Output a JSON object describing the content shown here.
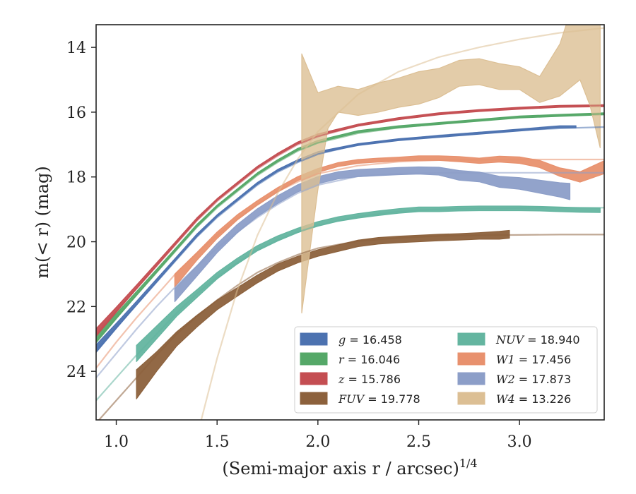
{
  "chart_data": {
    "type": "line",
    "xlabel": "(Semi-major axis r / arcsec)",
    "xlabel_sup": "1/4",
    "ylabel": "m(< r) (mag)",
    "xlim": [
      0.9,
      3.42
    ],
    "ylim": [
      25.5,
      13.3
    ],
    "y_inverted": true,
    "xticks": [
      1.0,
      1.5,
      2.0,
      2.5,
      3.0
    ],
    "xtick_labels": [
      "1.0",
      "1.5",
      "2.0",
      "2.5",
      "3.0"
    ],
    "yticks": [
      14,
      16,
      18,
      20,
      22,
      24
    ],
    "ytick_labels": [
      "14",
      "16",
      "18",
      "20",
      "22",
      "24"
    ],
    "legend_position": "lower right",
    "series": [
      {
        "name": "g",
        "value_text": "16.458",
        "color": "#4c72b0",
        "band_x": [
          0.9,
          1.0,
          1.1,
          1.2,
          1.3,
          1.4,
          1.5,
          1.6,
          1.7,
          1.8,
          1.9,
          2.0,
          2.2,
          2.4,
          2.6,
          2.8,
          3.0,
          3.2,
          3.28
        ],
        "band_y": [
          23.3,
          22.6,
          21.9,
          21.2,
          20.5,
          19.8,
          19.2,
          18.7,
          18.2,
          17.8,
          17.5,
          17.25,
          17.0,
          16.85,
          16.75,
          16.65,
          16.55,
          16.45,
          16.45
        ],
        "band_halfwidth": [
          0.12,
          0.08,
          0.06,
          0.05,
          0.04,
          0.04,
          0.03,
          0.03,
          0.03,
          0.03,
          0.03,
          0.03,
          0.03,
          0.03,
          0.03,
          0.03,
          0.03,
          0.03,
          0.03
        ],
        "model_x": [
          0.9,
          1.0,
          1.1,
          1.2,
          1.3,
          1.4,
          1.5,
          1.6,
          1.7,
          1.8,
          1.9,
          2.0,
          2.2,
          2.4,
          2.6,
          2.8,
          3.0,
          3.2,
          3.42
        ],
        "model_y": [
          23.35,
          22.65,
          21.95,
          21.25,
          20.55,
          19.85,
          19.25,
          18.75,
          18.25,
          17.85,
          17.55,
          17.3,
          17.0,
          16.85,
          16.72,
          16.63,
          16.56,
          16.5,
          16.46
        ]
      },
      {
        "name": "r",
        "value_text": "16.046",
        "color": "#55a868",
        "band_x": [
          0.9,
          1.0,
          1.1,
          1.2,
          1.3,
          1.4,
          1.5,
          1.6,
          1.7,
          1.8,
          1.9,
          2.0,
          2.2,
          2.4,
          2.6,
          2.8,
          3.0,
          3.2,
          3.42
        ],
        "band_y": [
          23.0,
          22.3,
          21.6,
          20.9,
          20.2,
          19.5,
          18.9,
          18.4,
          17.9,
          17.5,
          17.15,
          16.9,
          16.6,
          16.45,
          16.35,
          16.25,
          16.15,
          16.1,
          16.05
        ],
        "band_halfwidth": [
          0.12,
          0.08,
          0.06,
          0.05,
          0.04,
          0.04,
          0.03,
          0.03,
          0.03,
          0.03,
          0.03,
          0.03,
          0.03,
          0.03,
          0.03,
          0.03,
          0.03,
          0.03,
          0.03
        ],
        "model_x": [
          0.9,
          1.0,
          1.1,
          1.2,
          1.3,
          1.4,
          1.5,
          1.6,
          1.7,
          1.8,
          1.9,
          2.0,
          2.2,
          2.4,
          2.6,
          2.8,
          3.0,
          3.2,
          3.42
        ],
        "model_y": [
          23.05,
          22.35,
          21.65,
          20.95,
          20.25,
          19.55,
          18.95,
          18.45,
          17.95,
          17.55,
          17.2,
          16.95,
          16.65,
          16.48,
          16.36,
          16.25,
          16.16,
          16.1,
          16.05
        ]
      },
      {
        "name": "z",
        "value_text": "15.786",
        "color": "#c44e52",
        "band_x": [
          0.9,
          1.0,
          1.1,
          1.2,
          1.3,
          1.4,
          1.5,
          1.6,
          1.7,
          1.8,
          1.9,
          2.0,
          2.2,
          2.4,
          2.6,
          2.8,
          3.0,
          3.2,
          3.42
        ],
        "band_y": [
          22.8,
          22.1,
          21.4,
          20.7,
          20.0,
          19.3,
          18.7,
          18.2,
          17.7,
          17.3,
          16.95,
          16.7,
          16.4,
          16.2,
          16.05,
          15.95,
          15.88,
          15.82,
          15.8
        ],
        "band_halfwidth": [
          0.12,
          0.08,
          0.06,
          0.05,
          0.04,
          0.04,
          0.03,
          0.03,
          0.03,
          0.03,
          0.03,
          0.03,
          0.03,
          0.03,
          0.03,
          0.03,
          0.03,
          0.03,
          0.03
        ],
        "model_x": [
          0.9,
          1.0,
          1.1,
          1.2,
          1.3,
          1.4,
          1.5,
          1.6,
          1.7,
          1.8,
          1.9,
          2.0,
          2.2,
          2.4,
          2.6,
          2.8,
          3.0,
          3.2,
          3.42
        ],
        "model_y": [
          22.85,
          22.15,
          21.45,
          20.75,
          20.05,
          19.35,
          18.75,
          18.25,
          17.75,
          17.35,
          17.0,
          16.75,
          16.42,
          16.22,
          16.06,
          15.96,
          15.88,
          15.82,
          15.79
        ]
      },
      {
        "name": "FUV",
        "value_text": "19.778",
        "color": "#8c613c",
        "band_x": [
          1.1,
          1.2,
          1.3,
          1.4,
          1.5,
          1.6,
          1.7,
          1.8,
          1.9,
          2.0,
          2.1,
          2.2,
          2.3,
          2.4,
          2.5,
          2.6,
          2.7,
          2.8,
          2.9,
          2.95
        ],
        "band_y": [
          24.4,
          23.7,
          23.0,
          22.45,
          21.95,
          21.55,
          21.15,
          20.8,
          20.55,
          20.35,
          20.2,
          20.05,
          19.97,
          19.93,
          19.9,
          19.87,
          19.85,
          19.82,
          19.8,
          19.77
        ],
        "band_halfwidth": [
          0.45,
          0.3,
          0.22,
          0.18,
          0.15,
          0.13,
          0.12,
          0.11,
          0.1,
          0.1,
          0.1,
          0.1,
          0.1,
          0.1,
          0.1,
          0.1,
          0.1,
          0.1,
          0.12,
          0.12
        ],
        "model_x": [
          0.9,
          1.0,
          1.1,
          1.2,
          1.3,
          1.4,
          1.5,
          1.6,
          1.7,
          1.8,
          1.9,
          2.0,
          2.2,
          2.4,
          2.6,
          2.8,
          3.0,
          3.2,
          3.42
        ],
        "model_y": [
          25.6,
          24.9,
          24.2,
          23.5,
          22.85,
          22.3,
          21.8,
          21.35,
          20.95,
          20.65,
          20.4,
          20.2,
          19.98,
          19.88,
          19.82,
          19.8,
          19.79,
          19.78,
          19.78
        ]
      },
      {
        "name": "NUV",
        "value_text": "18.940",
        "color": "#64b5a0",
        "band_x": [
          1.1,
          1.2,
          1.3,
          1.4,
          1.5,
          1.6,
          1.7,
          1.8,
          1.9,
          2.0,
          2.1,
          2.2,
          2.3,
          2.4,
          2.5,
          2.6,
          2.7,
          2.8,
          2.9,
          3.0,
          3.1,
          3.2,
          3.3,
          3.4
        ],
        "band_y": [
          23.45,
          22.8,
          22.15,
          21.6,
          21.05,
          20.6,
          20.2,
          19.9,
          19.65,
          19.45,
          19.3,
          19.2,
          19.12,
          19.05,
          19.0,
          19.0,
          18.98,
          18.97,
          18.97,
          18.97,
          18.98,
          19.0,
          19.02,
          19.03
        ],
        "band_halfwidth": [
          0.25,
          0.2,
          0.15,
          0.12,
          0.1,
          0.09,
          0.08,
          0.08,
          0.07,
          0.07,
          0.07,
          0.07,
          0.07,
          0.07,
          0.07,
          0.07,
          0.07,
          0.07,
          0.07,
          0.07,
          0.07,
          0.07,
          0.07,
          0.07
        ],
        "model_x": [
          0.9,
          1.0,
          1.1,
          1.2,
          1.3,
          1.4,
          1.5,
          1.6,
          1.7,
          1.8,
          1.9,
          2.0,
          2.2,
          2.4,
          2.6,
          2.8,
          3.0,
          3.2,
          3.42
        ],
        "model_y": [
          24.9,
          24.2,
          23.5,
          22.85,
          22.2,
          21.6,
          21.1,
          20.65,
          20.25,
          19.95,
          19.7,
          19.5,
          19.22,
          19.07,
          19.0,
          18.97,
          18.96,
          18.95,
          18.95
        ]
      },
      {
        "name": "W1",
        "value_text": "17.456",
        "color": "#e8916e",
        "band_x": [
          1.29,
          1.4,
          1.5,
          1.6,
          1.7,
          1.8,
          1.9,
          2.0,
          2.1,
          2.2,
          2.3,
          2.4,
          2.5,
          2.6,
          2.7,
          2.8,
          2.9,
          3.0,
          3.1,
          3.2,
          3.3,
          3.42
        ],
        "band_y": [
          21.2,
          20.45,
          19.8,
          19.25,
          18.8,
          18.4,
          18.05,
          17.8,
          17.62,
          17.52,
          17.48,
          17.45,
          17.42,
          17.42,
          17.45,
          17.5,
          17.45,
          17.48,
          17.6,
          17.85,
          18.0,
          17.7
        ],
        "band_halfwidth": [
          0.2,
          0.12,
          0.1,
          0.08,
          0.07,
          0.07,
          0.06,
          0.06,
          0.06,
          0.06,
          0.06,
          0.06,
          0.07,
          0.07,
          0.08,
          0.08,
          0.09,
          0.1,
          0.11,
          0.13,
          0.16,
          0.2
        ],
        "model_x": [
          0.9,
          1.0,
          1.1,
          1.2,
          1.3,
          1.4,
          1.5,
          1.6,
          1.7,
          1.8,
          1.9,
          2.0,
          2.2,
          2.4,
          2.6,
          2.8,
          3.0,
          3.2,
          3.42
        ],
        "model_y": [
          23.9,
          23.1,
          22.35,
          21.65,
          20.95,
          20.35,
          19.8,
          19.3,
          18.85,
          18.45,
          18.15,
          17.9,
          17.65,
          17.53,
          17.48,
          17.47,
          17.46,
          17.46,
          17.46
        ]
      },
      {
        "name": "W2",
        "value_text": "17.873",
        "color": "#8c9ec8",
        "band_x": [
          1.29,
          1.4,
          1.5,
          1.6,
          1.7,
          1.8,
          1.9,
          2.0,
          2.1,
          2.2,
          2.3,
          2.4,
          2.5,
          2.6,
          2.7,
          2.8,
          2.9,
          3.0,
          3.1,
          3.2,
          3.25
        ],
        "band_y": [
          21.65,
          20.9,
          20.2,
          19.6,
          19.1,
          18.7,
          18.35,
          18.1,
          17.95,
          17.88,
          17.85,
          17.82,
          17.8,
          17.82,
          17.95,
          18.0,
          18.15,
          18.2,
          18.3,
          18.4,
          18.45
        ],
        "band_halfwidth": [
          0.2,
          0.16,
          0.14,
          0.13,
          0.12,
          0.12,
          0.11,
          0.11,
          0.11,
          0.11,
          0.11,
          0.11,
          0.11,
          0.12,
          0.15,
          0.15,
          0.17,
          0.18,
          0.2,
          0.22,
          0.25
        ],
        "model_x": [
          0.9,
          1.0,
          1.1,
          1.2,
          1.3,
          1.4,
          1.5,
          1.6,
          1.7,
          1.8,
          1.9,
          2.0,
          2.2,
          2.4,
          2.6,
          2.8,
          3.0,
          3.2,
          3.42
        ],
        "model_y": [
          24.2,
          23.45,
          22.7,
          22.0,
          21.35,
          20.75,
          20.2,
          19.7,
          19.25,
          18.85,
          18.5,
          18.25,
          17.98,
          17.9,
          17.88,
          17.87,
          17.87,
          17.87,
          17.87
        ]
      },
      {
        "name": "W4",
        "value_text": "13.226",
        "color": "#dcbf94",
        "band_x": [
          1.92,
          2.0,
          2.05,
          2.1,
          2.2,
          2.3,
          2.4,
          2.5,
          2.6,
          2.7,
          2.8,
          2.9,
          3.0,
          3.1,
          3.2,
          3.3,
          3.35,
          3.4
        ],
        "band_y": [
          18.2,
          16.9,
          15.9,
          15.6,
          15.7,
          15.55,
          15.4,
          15.25,
          15.1,
          14.8,
          14.75,
          14.9,
          14.95,
          15.3,
          14.7,
          13.5,
          13.3,
          13.6
        ],
        "band_halfwidth": [
          4.0,
          1.5,
          0.6,
          0.4,
          0.4,
          0.45,
          0.45,
          0.5,
          0.45,
          0.4,
          0.4,
          0.4,
          0.35,
          0.4,
          0.8,
          1.5,
          2.5,
          3.5
        ],
        "model_x": [
          1.38,
          1.5,
          1.6,
          1.7,
          1.8,
          1.9,
          2.0,
          2.2,
          2.4,
          2.6,
          2.8,
          3.0,
          3.2,
          3.42
        ],
        "model_y": [
          26.5,
          23.6,
          21.5,
          19.8,
          18.5,
          17.45,
          16.6,
          15.45,
          14.75,
          14.3,
          14.0,
          13.75,
          13.55,
          13.4
        ]
      }
    ],
    "legend": {
      "left_column": [
        {
          "label": "g = 16.458",
          "var": "g",
          "value": "16.458",
          "color": "#4c72b0"
        },
        {
          "label": "r = 16.046",
          "var": "r",
          "value": "16.046",
          "color": "#55a868"
        },
        {
          "label": "z = 15.786",
          "var": "z",
          "value": "15.786",
          "color": "#c44e52"
        },
        {
          "label": "FUV = 19.778",
          "var": "FUV",
          "value": "19.778",
          "color": "#8c613c"
        }
      ],
      "right_column": [
        {
          "label": "NUV = 18.940",
          "var": "NUV",
          "value": "18.940",
          "color": "#64b5a0"
        },
        {
          "label": "W1 = 17.456",
          "var": "W1",
          "value": "17.456",
          "color": "#e8916e"
        },
        {
          "label": "W2 = 17.873",
          "var": "W2",
          "value": "17.873",
          "color": "#8c9ec8"
        },
        {
          "label": "W4 = 13.226",
          "var": "W4",
          "value": "13.226",
          "color": "#dcbf94"
        }
      ]
    }
  }
}
